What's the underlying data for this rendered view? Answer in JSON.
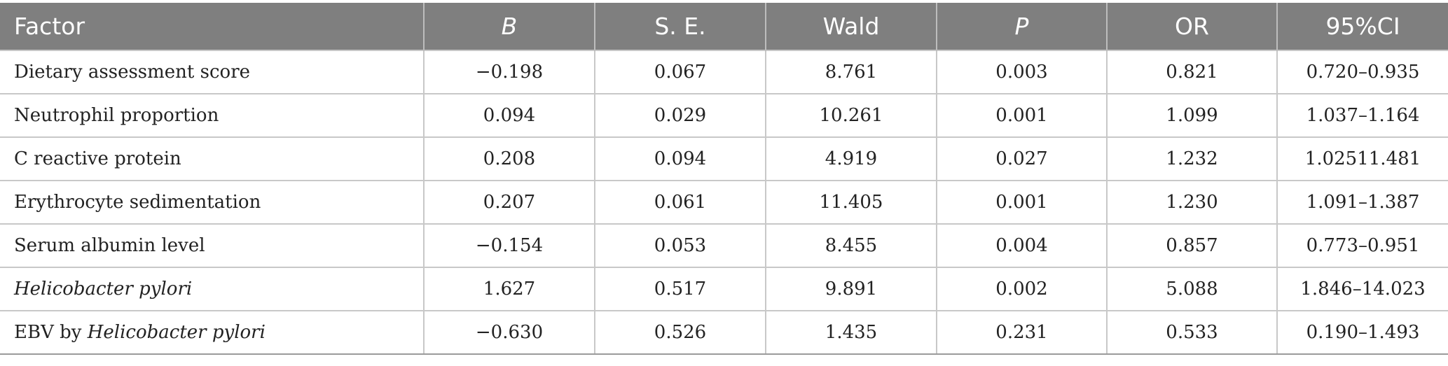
{
  "table": {
    "headers": [
      "Factor",
      "B",
      "S. E.",
      "Wald",
      "P",
      "OR",
      "95%CI"
    ],
    "rows": [
      {
        "factor": "Dietary assessment score",
        "values": [
          "−0.198",
          "0.067",
          "8.761",
          "0.003",
          "0.821",
          "0.720–0.935"
        ]
      },
      {
        "factor": "Neutrophil proportion",
        "values": [
          "0.094",
          "0.029",
          "10.261",
          "0.001",
          "1.099",
          "1.037–1.164"
        ]
      },
      {
        "factor": "C reactive protein",
        "values": [
          "0.208",
          "0.094",
          "4.919",
          "0.027",
          "1.232",
          "1.02511.481"
        ]
      },
      {
        "factor": "Erythrocyte sedimentation",
        "values": [
          "0.207",
          "0.061",
          "11.405",
          "0.001",
          "1.230",
          "1.091–1.387"
        ]
      },
      {
        "factor": "Serum albumin level",
        "values": [
          "−0.154",
          "0.053",
          "8.455",
          "0.004",
          "0.857",
          "0.773–0.951"
        ]
      },
      {
        "factor": "Helicobacter pylori",
        "values": [
          "1.627",
          "0.517",
          "9.891",
          "0.002",
          "5.088",
          "1.846–14.023"
        ]
      },
      {
        "factor_prefix": "EBV by ",
        "factor_italic": "Helicobacter pylori",
        "values": [
          "−0.630",
          "0.526",
          "1.435",
          "0.231",
          "0.533",
          "0.190–1.493"
        ]
      }
    ]
  }
}
